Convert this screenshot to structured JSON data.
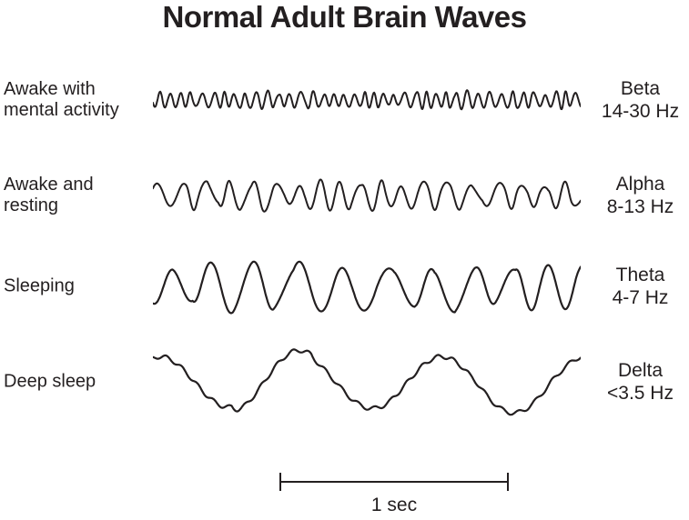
{
  "colors": {
    "ink": "#231f20",
    "background": "#ffffff"
  },
  "title": "Normal Adult Brain Waves",
  "rows": [
    {
      "state_line1": "Awake with",
      "state_line2": "mental activity",
      "band": "Beta",
      "freq_range": "14-30 Hz",
      "wave_render": {
        "cycles": 40,
        "amplitude": 8,
        "freq_jitter": 0.35,
        "amp_jitter": 0.5,
        "ripple": 0,
        "seed": 11,
        "stroke_width": 2
      }
    },
    {
      "state_line1": "Awake and",
      "state_line2": "resting",
      "band": "Alpha",
      "freq_range": "8-13 Hz",
      "wave_render": {
        "cycles": 19,
        "amplitude": 13,
        "freq_jitter": 0.3,
        "amp_jitter": 0.45,
        "ripple": 0,
        "seed": 23,
        "stroke_width": 2
      }
    },
    {
      "state_line1": "Sleeping",
      "state_line2": "",
      "band": "Theta",
      "freq_range": "4-7 Hz",
      "wave_render": {
        "cycles": 10.5,
        "amplitude": 23,
        "freq_jitter": 0.28,
        "amp_jitter": 0.35,
        "ripple": 0,
        "seed": 5,
        "stroke_width": 2.2
      }
    },
    {
      "state_line1": "Deep sleep",
      "state_line2": "",
      "band": "Delta",
      "freq_range": "<3.5 Hz",
      "wave_render": {
        "cycles": 2.7,
        "amplitude": 32,
        "freq_jitter": 0.2,
        "amp_jitter": 0.18,
        "ripple": 0.07,
        "seed": 9,
        "stroke_width": 2.2
      }
    }
  ],
  "scale_bar": {
    "label": "1 sec"
  }
}
